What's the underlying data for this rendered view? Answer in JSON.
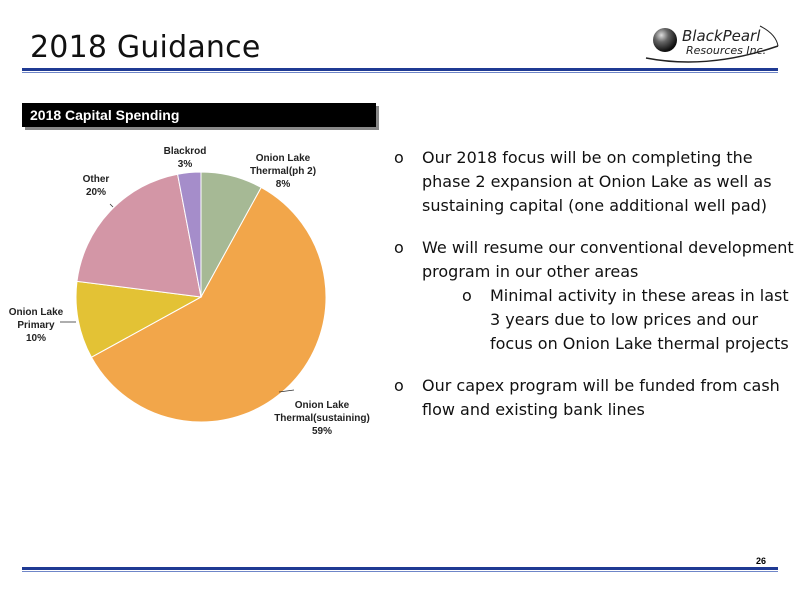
{
  "slide": {
    "title": "2018 Guidance",
    "page_number": "26",
    "logo": {
      "line1": "BlackPearl",
      "line2": "Resources Inc."
    },
    "section_title": "2018 Capital Spending"
  },
  "bullets": [
    {
      "marker": "o",
      "text": "Our 2018 focus will be on completing the phase 2 expansion at Onion Lake as well as sustaining capital (one additional well pad)"
    },
    {
      "marker": "o",
      "text": "We will resume our conventional development program in our other areas",
      "sub": [
        {
          "marker": "o",
          "text": "Minimal activity in these areas in last 3 years due to low prices and our focus on Onion Lake thermal projects"
        }
      ]
    },
    {
      "marker": "o",
      "text": "Our capex program will be funded from cash flow and existing bank lines"
    }
  ],
  "chart_data": {
    "type": "pie",
    "title": "2018 Capital Spending",
    "unit": "%",
    "legend": "none",
    "slices": [
      {
        "label": "Onion Lake Thermal(ph 2)",
        "value": 8,
        "value_label": "8%",
        "color": "#a6b995"
      },
      {
        "label": "Onion Lake Thermal(sustaining)",
        "value": 59,
        "value_label": "59%",
        "color": "#f2a64a"
      },
      {
        "label": "Onion Lake Primary",
        "value": 10,
        "value_label": "10%",
        "color": "#e3c235"
      },
      {
        "label": "Other",
        "value": 20,
        "value_label": "20%",
        "color": "#d396a6"
      },
      {
        "label": "Blackrod",
        "value": 3,
        "value_label": "3%",
        "color": "#a58dca"
      }
    ]
  }
}
